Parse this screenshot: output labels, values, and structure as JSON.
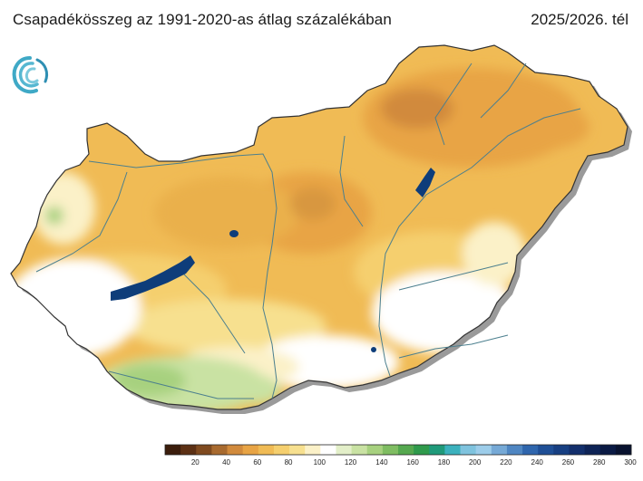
{
  "header": {
    "title": "Csapadékösszeg az 1991-2020-as átlag százalékában",
    "season": "2025/2026. tél"
  },
  "logo": {
    "icon": "weather-service-swirl-logo"
  },
  "legend": {
    "colors": [
      "#3b1d0c",
      "#5c3014",
      "#7f4a1f",
      "#a86a2f",
      "#d18a3c",
      "#e8a445",
      "#f0bb55",
      "#f5cf6e",
      "#f7e08f",
      "#fbf1c8",
      "#ffffff",
      "#e3efc9",
      "#c9e2a3",
      "#a7d17f",
      "#7fbd62",
      "#55a84f",
      "#2f9a4c",
      "#1f9a7a",
      "#3bb1bd",
      "#7fc3de",
      "#9dcdea",
      "#76a9d6",
      "#4f86c2",
      "#2f66ad",
      "#1f4f96",
      "#173f82",
      "#132f6c",
      "#0e2356",
      "#0a1a44",
      "#08122f"
    ],
    "ticks": [
      "20",
      "40",
      "60",
      "80",
      "100",
      "120",
      "140",
      "160",
      "180",
      "200",
      "220",
      "240",
      "260",
      "280",
      "300"
    ]
  },
  "map": {
    "country": "Magyarország",
    "dominant_range": "60–80",
    "regions": [
      {
        "name": "north-east",
        "class": "40–60"
      },
      {
        "name": "central",
        "class": "60–80"
      },
      {
        "name": "south-west",
        "class": "100–120"
      },
      {
        "name": "south-east",
        "class": "80–100"
      }
    ]
  }
}
